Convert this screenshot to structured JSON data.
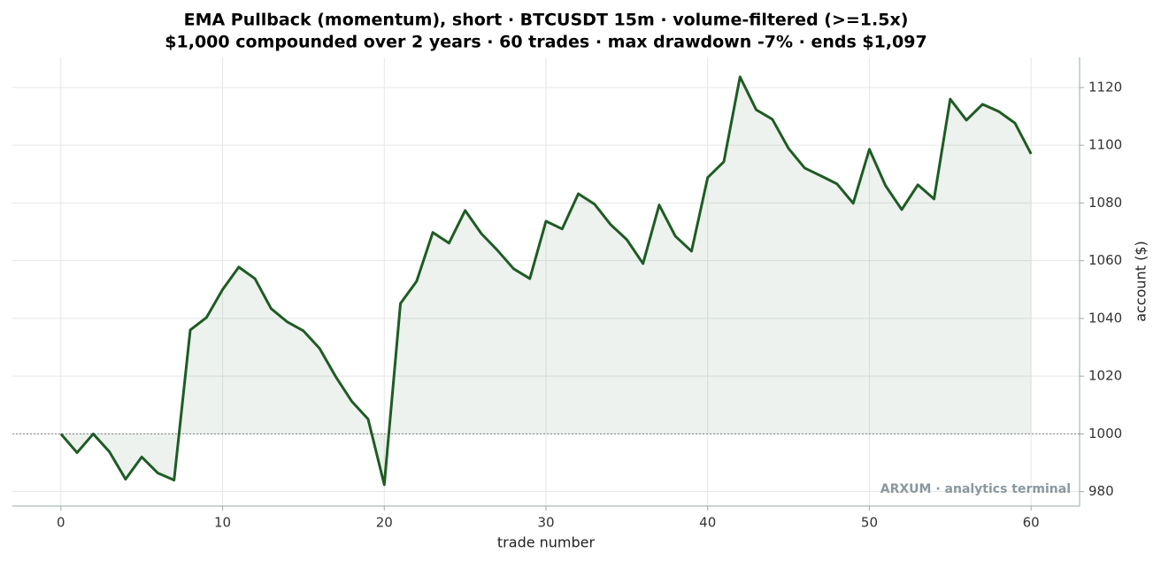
{
  "chart_data": {
    "type": "line",
    "title": "EMA Pullback (momentum), short · BTCUSDT 15m · volume-filtered (>=1.5x)",
    "subtitle": "$1,000 compounded over 2 years · 60 trades · max drawdown -7% · ends $1,097",
    "x_label": "trade number",
    "y_label": "account ($)",
    "annotation": "ARXUM · analytics terminal",
    "x": [
      0,
      1,
      2,
      3,
      4,
      5,
      6,
      7,
      8,
      9,
      10,
      11,
      12,
      13,
      14,
      15,
      16,
      17,
      18,
      19,
      20,
      21,
      22,
      23,
      24,
      25,
      26,
      27,
      28,
      29,
      30,
      31,
      32,
      33,
      34,
      35,
      36,
      37,
      38,
      39,
      40,
      41,
      42,
      43,
      44,
      45,
      46,
      47,
      48,
      49,
      50,
      51,
      52,
      53,
      54,
      55,
      56,
      57,
      58,
      59,
      60
    ],
    "series": [
      {
        "name": "account",
        "color": "#1e5c24",
        "values": [
          1000,
          993.5,
          1000,
          993.8,
          984.3,
          992,
          986.4,
          984,
          1036,
          1040.3,
          1050,
          1057.8,
          1053.8,
          1043.4,
          1038.8,
          1035.7,
          1029.6,
          1019.8,
          1011.2,
          1005.1,
          982.4,
          1045.2,
          1052.9,
          1069.8,
          1066.1,
          1077.4,
          1069.4,
          1063.6,
          1057.2,
          1053.8,
          1073.7,
          1071,
          1083.2,
          1079.6,
          1072.5,
          1067.3,
          1059,
          1079.3,
          1068.5,
          1063.3,
          1088.8,
          1094.3,
          1123.7,
          1112.3,
          1109,
          1098.9,
          1092.1,
          1089.4,
          1086.6,
          1079.9,
          1098.6,
          1086,
          1077.7,
          1086.3,
          1081.4,
          1116,
          1108.7,
          1114.2,
          1111.7,
          1107.7,
          1097
        ]
      }
    ],
    "baseline": 1000,
    "xlim": [
      -3,
      63
    ],
    "xticks": [
      0,
      10,
      20,
      30,
      40,
      50,
      60
    ],
    "ylim": [
      975,
      1130.4
    ],
    "yticks": [
      980,
      1000,
      1020,
      1040,
      1060,
      1080,
      1100,
      1120
    ],
    "y_axis_side": "right",
    "grid": true
  }
}
